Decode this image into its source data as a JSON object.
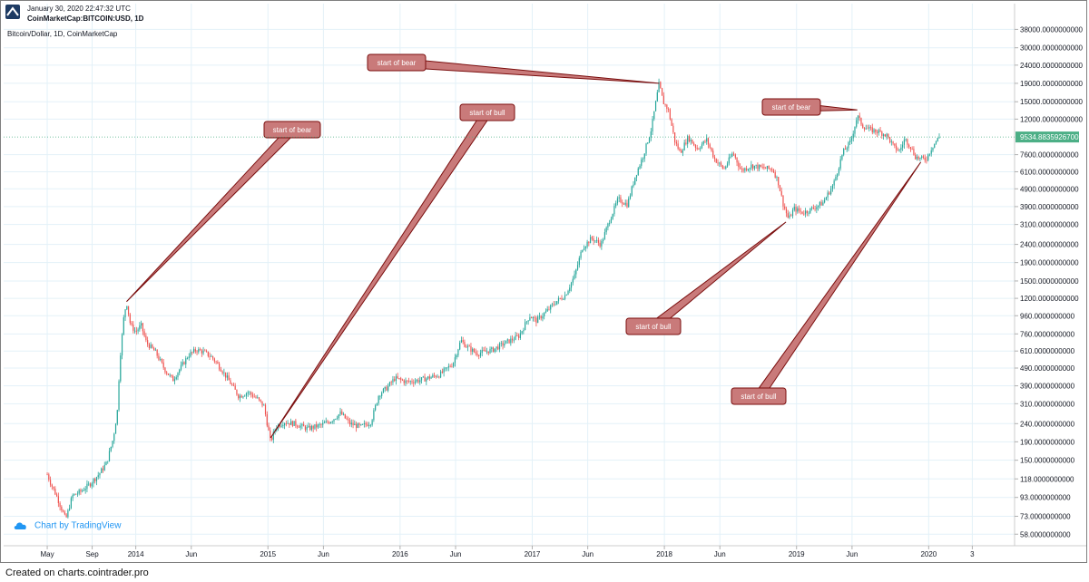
{
  "header": {
    "date": "January 30, 2020 22:47:32 UTC",
    "symbol": "CoinMarketCap:BITCOIN:USD, 1D"
  },
  "footer": {
    "text": "Created on charts.cointrader.pro"
  },
  "credit": {
    "text": "Chart by TradingView",
    "icon": "cloud-icon"
  },
  "colors": {
    "up": "#26a69a",
    "down": "#ef5350",
    "callout_fill": "#c97a7a",
    "callout_stroke": "#7a0e0e",
    "price_label": "#4caf86",
    "grid": "#e3f1f8"
  },
  "chart_data": {
    "type": "candlestick",
    "title": "Bitcoin/Dollar, 1D, CoinMarketCap",
    "y_scale": "log",
    "ylim": [
      50,
      40000
    ],
    "y_ticks": [
      38000,
      30000,
      24000,
      19000,
      15000,
      12000,
      9534.88359267,
      7600,
      6100,
      4900,
      3900,
      3100,
      2400,
      1900,
      1500,
      1200,
      960,
      760,
      610,
      490,
      390,
      310,
      240,
      190,
      150,
      118,
      93,
      73,
      58
    ],
    "y_tick_labels": [
      "38000.0000000000",
      "30000.0000000000",
      "24000.0000000000",
      "19000.0000000000",
      "15000.0000000000",
      "12000.0000000000",
      "9534.8835926700",
      "7600.0000000000",
      "6100.0000000000",
      "4900.0000000000",
      "3900.0000000000",
      "3100.0000000000",
      "2400.0000000000",
      "1900.0000000000",
      "1500.0000000000",
      "1200.0000000000",
      "960.0000000000",
      "760.0000000000",
      "610.0000000000",
      "490.0000000000",
      "390.0000000000",
      "310.0000000000",
      "240.0000000000",
      "190.0000000000",
      "150.0000000000",
      "118.0000000000",
      "93.0000000000",
      "73.0000000000",
      "58.0000000000"
    ],
    "x_ticks": [
      "May",
      "Sep",
      "2014",
      "Jun",
      "2015",
      "Jun",
      "2016",
      "Jun",
      "2017",
      "Jun",
      "2018",
      "Jun",
      "2019",
      "Jun",
      "2020",
      "3"
    ],
    "x_tick_dates": [
      2013.33,
      2013.67,
      2014.0,
      2014.42,
      2015.0,
      2015.42,
      2016.0,
      2016.42,
      2017.0,
      2017.42,
      2018.0,
      2018.42,
      2019.0,
      2019.42,
      2020.0,
      2020.33
    ],
    "xlim": [
      2013.0,
      2020.65
    ],
    "current_price": 9534.88359267,
    "current_price_label": "9534.8835926700",
    "price_path": [
      [
        2013.33,
        125
      ],
      [
        2013.36,
        110
      ],
      [
        2013.4,
        95
      ],
      [
        2013.44,
        80
      ],
      [
        2013.47,
        70
      ],
      [
        2013.52,
        95
      ],
      [
        2013.58,
        100
      ],
      [
        2013.65,
        110
      ],
      [
        2013.72,
        125
      ],
      [
        2013.78,
        145
      ],
      [
        2013.83,
        200
      ],
      [
        2013.86,
        280
      ],
      [
        2013.88,
        550
      ],
      [
        2013.91,
        950
      ],
      [
        2013.93,
        1150
      ],
      [
        2013.96,
        850
      ],
      [
        2014.0,
        780
      ],
      [
        2014.04,
        850
      ],
      [
        2014.08,
        680
      ],
      [
        2014.15,
        600
      ],
      [
        2014.22,
        480
      ],
      [
        2014.28,
        420
      ],
      [
        2014.33,
        480
      ],
      [
        2014.4,
        580
      ],
      [
        2014.46,
        620
      ],
      [
        2014.52,
        600
      ],
      [
        2014.58,
        560
      ],
      [
        2014.65,
        480
      ],
      [
        2014.72,
        400
      ],
      [
        2014.78,
        340
      ],
      [
        2014.85,
        360
      ],
      [
        2014.92,
        330
      ],
      [
        2014.97,
        300
      ],
      [
        2015.02,
        190
      ],
      [
        2015.06,
        230
      ],
      [
        2015.12,
        245
      ],
      [
        2015.2,
        240
      ],
      [
        2015.3,
        225
      ],
      [
        2015.4,
        235
      ],
      [
        2015.48,
        250
      ],
      [
        2015.55,
        275
      ],
      [
        2015.62,
        240
      ],
      [
        2015.7,
        230
      ],
      [
        2015.78,
        245
      ],
      [
        2015.84,
        350
      ],
      [
        2015.9,
        380
      ],
      [
        2015.96,
        430
      ],
      [
        2016.05,
        410
      ],
      [
        2016.15,
        420
      ],
      [
        2016.3,
        450
      ],
      [
        2016.4,
        520
      ],
      [
        2016.46,
        700
      ],
      [
        2016.5,
        650
      ],
      [
        2016.58,
        590
      ],
      [
        2016.7,
        620
      ],
      [
        2016.8,
        680
      ],
      [
        2016.9,
        740
      ],
      [
        2016.98,
        960
      ],
      [
        2017.03,
        900
      ],
      [
        2017.1,
        1000
      ],
      [
        2017.18,
        1150
      ],
      [
        2017.25,
        1250
      ],
      [
        2017.32,
        1600
      ],
      [
        2017.38,
        2300
      ],
      [
        2017.45,
        2600
      ],
      [
        2017.52,
        2400
      ],
      [
        2017.58,
        3200
      ],
      [
        2017.65,
        4300
      ],
      [
        2017.72,
        4000
      ],
      [
        2017.78,
        5800
      ],
      [
        2017.84,
        7500
      ],
      [
        2017.9,
        10500
      ],
      [
        2017.96,
        19000
      ],
      [
        2017.99,
        15000
      ],
      [
        2018.03,
        13500
      ],
      [
        2018.08,
        9000
      ],
      [
        2018.12,
        7800
      ],
      [
        2018.18,
        9500
      ],
      [
        2018.25,
        8200
      ],
      [
        2018.32,
        9200
      ],
      [
        2018.38,
        7200
      ],
      [
        2018.45,
        6300
      ],
      [
        2018.52,
        7800
      ],
      [
        2018.58,
        6200
      ],
      [
        2018.66,
        6600
      ],
      [
        2018.75,
        6400
      ],
      [
        2018.82,
        6300
      ],
      [
        2018.86,
        5400
      ],
      [
        2018.9,
        4000
      ],
      [
        2018.94,
        3300
      ],
      [
        2018.98,
        3800
      ],
      [
        2019.05,
        3600
      ],
      [
        2019.12,
        3800
      ],
      [
        2019.2,
        4100
      ],
      [
        2019.28,
        5200
      ],
      [
        2019.35,
        7800
      ],
      [
        2019.41,
        9000
      ],
      [
        2019.46,
        12500
      ],
      [
        2019.5,
        11000
      ],
      [
        2019.55,
        10500
      ],
      [
        2019.62,
        10200
      ],
      [
        2019.68,
        9800
      ],
      [
        2019.74,
        8300
      ],
      [
        2019.78,
        8000
      ],
      [
        2019.82,
        9300
      ],
      [
        2019.86,
        8500
      ],
      [
        2019.9,
        7400
      ],
      [
        2019.94,
        7200
      ],
      [
        2019.98,
        7200
      ],
      [
        2020.03,
        8500
      ],
      [
        2020.08,
        9534.88359267
      ]
    ],
    "annotations": [
      {
        "label": "start of bear",
        "point_date": 2013.93,
        "point_price": 1150
      },
      {
        "label": "start of bull",
        "point_date": 2015.02,
        "point_price": 200
      },
      {
        "label": "start of bear",
        "point_date": 2017.96,
        "point_price": 19000
      },
      {
        "label": "start of bear",
        "point_date": 2019.46,
        "point_price": 13500
      },
      {
        "label": "start of bull",
        "point_date": 2018.92,
        "point_price": 3200
      },
      {
        "label": "start of bull",
        "point_date": 2019.94,
        "point_price": 6900
      }
    ]
  }
}
